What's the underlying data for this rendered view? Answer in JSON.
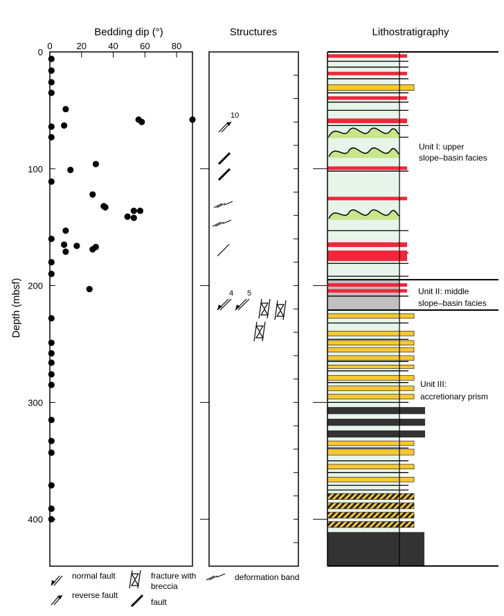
{
  "depth_axis": {
    "label": "Depth (mbsf)",
    "range": [
      0,
      440
    ],
    "ticks": [
      0,
      100,
      200,
      300,
      400
    ]
  },
  "panels": {
    "dip": {
      "title": "Bedding dip (°)",
      "xlim": [
        0,
        90
      ],
      "xticks": [
        0,
        20,
        40,
        60,
        80
      ]
    },
    "structures": {
      "title": "Structures"
    },
    "litho": {
      "title": "Lithostratigraphy"
    }
  },
  "chart_data": [
    {
      "type": "scatter",
      "title": "Bedding dip (°)",
      "xlabel": "Bedding dip (°)",
      "ylabel": "Depth (mbsf)",
      "xlim": [
        0,
        90
      ],
      "ylim": [
        440,
        0
      ],
      "y_axis_inverted": true,
      "points": [
        {
          "dip": 1,
          "depth": 6
        },
        {
          "dip": 1,
          "depth": 16
        },
        {
          "dip": 1,
          "depth": 26
        },
        {
          "dip": 1,
          "depth": 35
        },
        {
          "dip": 10,
          "depth": 49
        },
        {
          "dip": 9,
          "depth": 63
        },
        {
          "dip": 1,
          "depth": 64
        },
        {
          "dip": 1,
          "depth": 73
        },
        {
          "dip": 56,
          "depth": 58
        },
        {
          "dip": 58,
          "depth": 60
        },
        {
          "dip": 90,
          "depth": 58
        },
        {
          "dip": 29,
          "depth": 96
        },
        {
          "dip": 13,
          "depth": 101
        },
        {
          "dip": 1,
          "depth": 111
        },
        {
          "dip": 27,
          "depth": 122
        },
        {
          "dip": 34,
          "depth": 132
        },
        {
          "dip": 35,
          "depth": 133
        },
        {
          "dip": 53,
          "depth": 136
        },
        {
          "dip": 57,
          "depth": 136
        },
        {
          "dip": 49,
          "depth": 141
        },
        {
          "dip": 53,
          "depth": 142
        },
        {
          "dip": 10,
          "depth": 153
        },
        {
          "dip": 1,
          "depth": 160
        },
        {
          "dip": 9,
          "depth": 165
        },
        {
          "dip": 17,
          "depth": 166
        },
        {
          "dip": 29,
          "depth": 167
        },
        {
          "dip": 27,
          "depth": 169
        },
        {
          "dip": 10,
          "depth": 171
        },
        {
          "dip": 1,
          "depth": 180
        },
        {
          "dip": 1,
          "depth": 190
        },
        {
          "dip": 25,
          "depth": 203
        },
        {
          "dip": 1,
          "depth": 228
        },
        {
          "dip": 1,
          "depth": 249
        },
        {
          "dip": 1,
          "depth": 258
        },
        {
          "dip": 1,
          "depth": 266
        },
        {
          "dip": 1,
          "depth": 276
        },
        {
          "dip": 1,
          "depth": 285
        },
        {
          "dip": 1,
          "depth": 315
        },
        {
          "dip": 1,
          "depth": 333
        },
        {
          "dip": 1,
          "depth": 343
        },
        {
          "dip": 1,
          "depth": 371
        },
        {
          "dip": 1,
          "depth": 391
        },
        {
          "dip": 1,
          "depth": 400
        }
      ]
    },
    {
      "type": "structures_log",
      "title": "Structures",
      "items": [
        {
          "kind": "reverse_fault",
          "depth": 62,
          "angle_label": "10"
        },
        {
          "kind": "fault",
          "depth": 94
        },
        {
          "kind": "fault",
          "depth": 108
        },
        {
          "kind": "deformation_band",
          "depth": 131
        },
        {
          "kind": "deformation_band",
          "depth": 146
        },
        {
          "kind": "fault",
          "depth": 170
        },
        {
          "kind": "normal_fault",
          "depth": 218,
          "angle_label": "4"
        },
        {
          "kind": "normal_fault",
          "depth": 218,
          "angle_label": "5"
        },
        {
          "kind": "fracture_with_breccia",
          "depth": 220
        },
        {
          "kind": "fracture_with_breccia",
          "depth": 221
        },
        {
          "kind": "fracture_with_breccia",
          "depth": 241
        }
      ],
      "legend": [
        {
          "kind": "normal_fault",
          "label": "normal fault"
        },
        {
          "kind": "reverse_fault",
          "label": "reverse fault"
        },
        {
          "kind": "fracture_with_breccia",
          "label": "fracture with breccia"
        },
        {
          "kind": "fault",
          "label": "fault"
        },
        {
          "kind": "deformation_band",
          "label": "deformation band"
        }
      ]
    },
    {
      "type": "lithology_column",
      "title": "Lithostratigraphy",
      "units": [
        {
          "label": "Unit I: upper slope–basin facies",
          "top": 0,
          "bottom": 195,
          "color": "#e6f4ea"
        },
        {
          "label": "Unit II: middle slope–basin facies",
          "top": 195,
          "bottom": 221,
          "color": "#c0c0c0"
        },
        {
          "label": "Unit III: accretionary prism",
          "top": 221,
          "bottom": 440,
          "color": "#e6f4ea"
        }
      ],
      "beds": [
        {
          "top": 2,
          "bottom": 5,
          "type": "red"
        },
        {
          "top": 17,
          "bottom": 20,
          "type": "red"
        },
        {
          "top": 28,
          "bottom": 33,
          "type": "yellow"
        },
        {
          "top": 38,
          "bottom": 41,
          "type": "red"
        },
        {
          "top": 57,
          "bottom": 61,
          "type": "red"
        },
        {
          "top": 98,
          "bottom": 101,
          "type": "red"
        },
        {
          "top": 124,
          "bottom": 127,
          "type": "red"
        },
        {
          "top": 163,
          "bottom": 167,
          "type": "red"
        },
        {
          "top": 170,
          "bottom": 179,
          "type": "red"
        },
        {
          "top": 198,
          "bottom": 201,
          "type": "red"
        },
        {
          "top": 203,
          "bottom": 206,
          "type": "red"
        },
        {
          "top": 224,
          "bottom": 228,
          "type": "yellow"
        },
        {
          "top": 239,
          "bottom": 243,
          "type": "yellow"
        },
        {
          "top": 247,
          "bottom": 251,
          "type": "yellow"
        },
        {
          "top": 253,
          "bottom": 257,
          "type": "yellow"
        },
        {
          "top": 260,
          "bottom": 264,
          "type": "yellow"
        },
        {
          "top": 268,
          "bottom": 271,
          "type": "yellow"
        },
        {
          "top": 277,
          "bottom": 281,
          "type": "yellow"
        },
        {
          "top": 286,
          "bottom": 290,
          "type": "yellow"
        },
        {
          "top": 293,
          "bottom": 297,
          "type": "yellow"
        },
        {
          "top": 304,
          "bottom": 310,
          "type": "dark"
        },
        {
          "top": 314,
          "bottom": 320,
          "type": "dark"
        },
        {
          "top": 324,
          "bottom": 330,
          "type": "dark"
        },
        {
          "top": 333,
          "bottom": 337,
          "type": "yellow"
        },
        {
          "top": 340,
          "bottom": 345,
          "type": "yellow"
        },
        {
          "top": 353,
          "bottom": 357,
          "type": "yellow"
        },
        {
          "top": 364,
          "bottom": 368,
          "type": "yellow"
        },
        {
          "top": 378,
          "bottom": 383,
          "type": "hatched"
        },
        {
          "top": 386,
          "bottom": 391,
          "type": "hatched"
        },
        {
          "top": 394,
          "bottom": 399,
          "type": "hatched"
        },
        {
          "top": 402,
          "bottom": 407,
          "type": "hatched"
        },
        {
          "top": 411,
          "bottom": 440,
          "type": "dark"
        }
      ],
      "wavy_intervals": [
        69,
        86,
        139
      ]
    }
  ],
  "legend_labels": {
    "normal_fault": "normal fault",
    "reverse_fault": "reverse fault",
    "fracture_line1": "fracture with",
    "fracture_line2": "breccia",
    "fault": "fault",
    "deformation_band": "deformation band"
  },
  "unit_labels": {
    "unit1_line1": "Unit I: upper",
    "unit1_line2": "slope–basin facies",
    "unit2_line1": "Unit II: middle",
    "unit2_line2": "slope–basin facies",
    "unit3_line1": "Unit III:",
    "unit3_line2": "accretionary prism"
  },
  "structure_angle_labels": {
    "a10": "10",
    "a4": "4",
    "a5": "5"
  },
  "colors": {
    "unit_fill": "#e6f4ea",
    "unit2_fill": "#c0c0c0",
    "red": "#f2263a",
    "yellow": "#f9c830",
    "dark": "#333333",
    "wavy_fill": "#c8e68a"
  }
}
